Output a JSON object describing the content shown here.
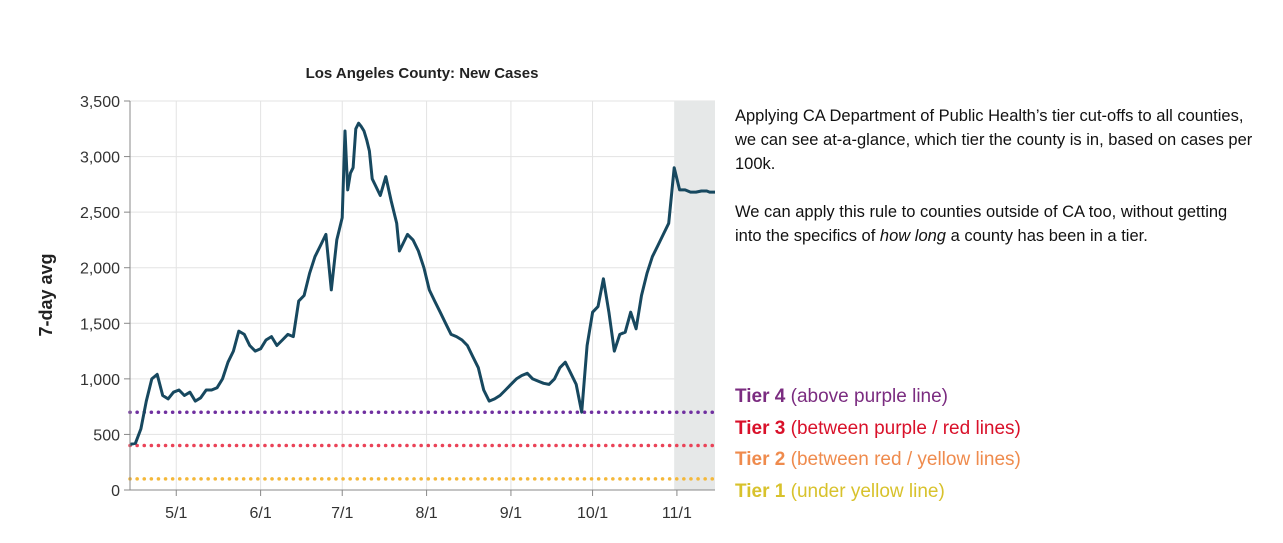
{
  "chart_data": {
    "type": "line",
    "title": "Los Angeles County: New Cases",
    "xlabel": "",
    "ylabel": "7-day avg",
    "ylim": [
      0,
      3500
    ],
    "yticks": [
      0,
      500,
      1000,
      1500,
      2000,
      2500,
      3000,
      3500
    ],
    "ytick_labels": [
      "0",
      "500",
      "1,000",
      "1,500",
      "2,000",
      "2,500",
      "3,000",
      "3,500"
    ],
    "xticks": [
      {
        "day": 17,
        "label": "5/1"
      },
      {
        "day": 48,
        "label": "6/1"
      },
      {
        "day": 78,
        "label": "7/1"
      },
      {
        "day": 109,
        "label": "8/1"
      },
      {
        "day": 140,
        "label": "9/1"
      },
      {
        "day": 170,
        "label": "10/1"
      },
      {
        "day": 201,
        "label": "11/1"
      }
    ],
    "x_range_days": [
      0,
      215
    ],
    "x_origin": "2020-04-14",
    "shaded_region_days": [
      200,
      215
    ],
    "series": [
      {
        "name": "7-day avg new cases",
        "color": "#17485f",
        "x": [
          0,
          2,
          4,
          6,
          8,
          10,
          12,
          14,
          16,
          18,
          20,
          22,
          24,
          26,
          28,
          30,
          32,
          34,
          36,
          38,
          40,
          42,
          44,
          46,
          48,
          50,
          52,
          54,
          56,
          58,
          60,
          62,
          64,
          66,
          68,
          70,
          72,
          74,
          76,
          77,
          78,
          79,
          80,
          81,
          82,
          83,
          84,
          85,
          86,
          87,
          88,
          89,
          90,
          92,
          94,
          96,
          98,
          99,
          100,
          102,
          104,
          106,
          108,
          110,
          112,
          114,
          116,
          118,
          120,
          122,
          124,
          126,
          128,
          130,
          132,
          134,
          136,
          138,
          140,
          142,
          144,
          146,
          148,
          150,
          152,
          154,
          156,
          158,
          160,
          162,
          164,
          166,
          168,
          170,
          172,
          174,
          176,
          178,
          180,
          182,
          184,
          186,
          188,
          190,
          192,
          194,
          196,
          198,
          200,
          202,
          204,
          206,
          208,
          210,
          212,
          213,
          214,
          215
        ],
        "y": [
          410,
          420,
          550,
          800,
          1000,
          1040,
          850,
          820,
          880,
          900,
          850,
          880,
          800,
          830,
          900,
          900,
          920,
          1000,
          1150,
          1250,
          1430,
          1400,
          1300,
          1250,
          1270,
          1350,
          1380,
          1300,
          1350,
          1400,
          1380,
          1700,
          1750,
          1950,
          2100,
          2200,
          2300,
          1800,
          2250,
          2350,
          2450,
          3230,
          2700,
          2850,
          2900,
          3250,
          3300,
          3270,
          3230,
          3150,
          3050,
          2800,
          2750,
          2650,
          2820,
          2600,
          2400,
          2150,
          2200,
          2300,
          2250,
          2150,
          2000,
          1800,
          1700,
          1600,
          1500,
          1400,
          1380,
          1350,
          1300,
          1200,
          1100,
          900,
          800,
          820,
          850,
          900,
          950,
          1000,
          1030,
          1050,
          1000,
          980,
          960,
          950,
          1000,
          1100,
          1150,
          1050,
          950,
          700,
          1300,
          1600,
          1650,
          1900,
          1600,
          1250,
          1400,
          1420,
          1600,
          1450,
          1750,
          1950,
          2100,
          2200,
          2300,
          2400,
          2900,
          2700,
          2700,
          2680,
          2680,
          2690,
          2690,
          2680,
          2680,
          2680
        ],
        "x_note": "days since 2020-04-14"
      }
    ],
    "reference_lines": [
      {
        "name": "purple-line",
        "value": 700,
        "color": "#7030a0"
      },
      {
        "name": "red-line",
        "value": 400,
        "color": "#ea4358"
      },
      {
        "name": "yellow-line",
        "value": 100,
        "color": "#f4b83a"
      }
    ]
  },
  "description": {
    "paragraph1": "Applying CA Department of Public Health’s tier cut-offs to all counties, we can see at-a-glance, which tier the county is in, based on cases per 100k.",
    "paragraph2_before": "We can apply this rule to counties outside of CA too, without getting into the specifics of ",
    "paragraph2_emphasis": "how long",
    "paragraph2_after": " a county has been in a tier."
  },
  "legend": {
    "tiers": [
      {
        "name": "Tier 4",
        "desc": " (above purple line)",
        "color": "#7b2c80"
      },
      {
        "name": "Tier 3",
        "desc": " (between purple / red lines)",
        "color": "#d9112a"
      },
      {
        "name": "Tier 2",
        "desc": " (between red /  yellow lines)",
        "color": "#ef8b4d"
      },
      {
        "name": "Tier 1",
        "desc": " (under yellow line)",
        "color": "#d8c22c"
      }
    ]
  }
}
